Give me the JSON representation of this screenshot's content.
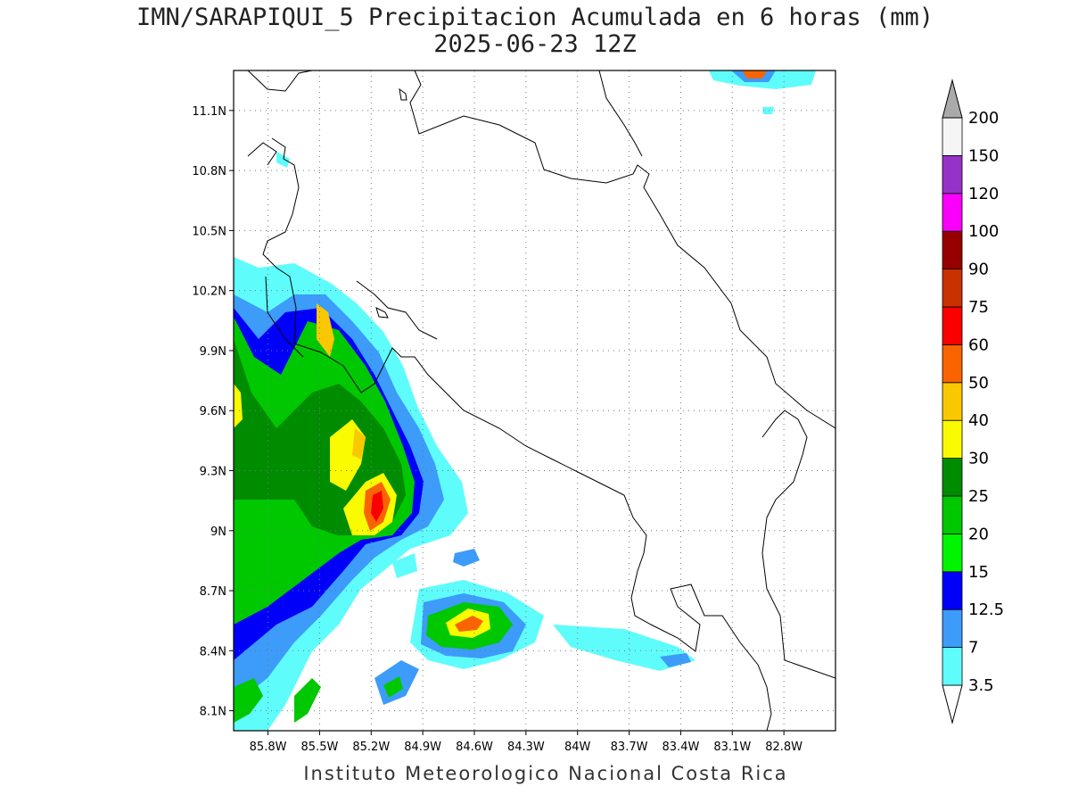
{
  "title": {
    "line1": "IMN/SARAPIQUI_5 Precipitacion Acumulada en 6 horas (mm)",
    "line2": "2025-06-23 12Z"
  },
  "footer": "Instituto Meteorologico Nacional Costa Rica",
  "map": {
    "lon_range": [
      -86.0,
      -82.5
    ],
    "lat_range": [
      8.0,
      11.3
    ],
    "lat_ticks": [
      "11.1N",
      "10.8N",
      "10.5N",
      "10.2N",
      "9.9N",
      "9.6N",
      "9.3N",
      "9N",
      "8.7N",
      "8.4N",
      "8.1N"
    ],
    "lon_ticks": [
      "85.8W",
      "85.5W",
      "85.2W",
      "84.9W",
      "84.6W",
      "84.3W",
      "84W",
      "83.7W",
      "83.4W",
      "83.1W",
      "82.8W"
    ],
    "grid": true,
    "grid_style": "dotted"
  },
  "colorbar": {
    "levels": [
      {
        "label": "3.5",
        "color": "#5ffcfc"
      },
      {
        "label": "7",
        "color": "#3d9bfa"
      },
      {
        "label": "12.5",
        "color": "#0000fa"
      },
      {
        "label": "15",
        "color": "#00f500"
      },
      {
        "label": "20",
        "color": "#00c800"
      },
      {
        "label": "25",
        "color": "#008c00"
      },
      {
        "label": "30",
        "color": "#fafa00"
      },
      {
        "label": "40",
        "color": "#fac800"
      },
      {
        "label": "50",
        "color": "#fa6400"
      },
      {
        "label": "60",
        "color": "#fa0000"
      },
      {
        "label": "75",
        "color": "#c83200"
      },
      {
        "label": "90",
        "color": "#960000"
      },
      {
        "label": "100",
        "color": "#fa00fa"
      },
      {
        "label": "120",
        "color": "#9632c8"
      },
      {
        "label": "150",
        "color": "#f5f5f5"
      },
      {
        "label": "200",
        "color": "#aaaaaa"
      }
    ]
  }
}
